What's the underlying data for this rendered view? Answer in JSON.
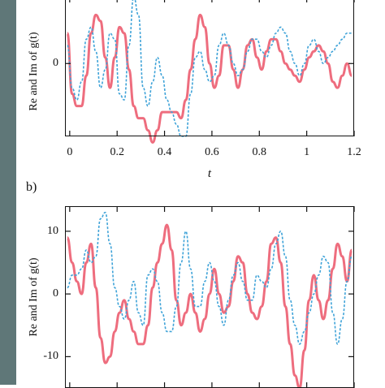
{
  "chart_data": [
    {
      "type": "line",
      "panel": "a",
      "ylabel": "Re and Im of g(t)",
      "xlabel": "t",
      "xlim": [
        -0.02,
        1.2
      ],
      "ylim": [
        -12,
        11
      ],
      "xticks": [
        "0",
        "0.2",
        "0.4",
        "0.6",
        "0.8",
        "1",
        "1.2"
      ],
      "yticks": [
        "0"
      ],
      "series": [
        {
          "color": "#ee6d7e",
          "style": "solid",
          "x": [
            -0.01,
            0.01,
            0.03,
            0.05,
            0.07,
            0.09,
            0.11,
            0.13,
            0.15,
            0.17,
            0.19,
            0.21,
            0.23,
            0.25,
            0.27,
            0.29,
            0.31,
            0.33,
            0.35,
            0.37,
            0.39,
            0.41,
            0.43,
            0.45,
            0.47,
            0.49,
            0.51,
            0.53,
            0.55,
            0.57,
            0.59,
            0.61,
            0.63,
            0.65,
            0.67,
            0.69,
            0.71,
            0.73,
            0.75,
            0.77,
            0.79,
            0.81,
            0.83,
            0.85,
            0.87,
            0.89,
            0.91,
            0.93,
            0.95,
            0.97,
            0.99,
            1.01,
            1.03,
            1.05,
            1.07,
            1.09,
            1.11,
            1.13,
            1.15,
            1.17,
            1.19
          ],
          "y": [
            5,
            -5,
            -7,
            -7,
            -2,
            5,
            8,
            7,
            1,
            -4,
            1,
            6,
            5,
            -1,
            -7,
            -9,
            -9,
            -11,
            -13,
            -11,
            -8,
            -8,
            -8,
            -8,
            -9,
            -6,
            -1,
            4,
            8,
            6,
            0,
            -4,
            -2,
            3,
            3,
            -1,
            -4,
            -1,
            3,
            4,
            1,
            -1,
            2,
            4,
            4,
            2,
            0,
            -1,
            -2,
            -3,
            -1,
            1,
            2,
            3,
            2,
            0,
            -3,
            -4,
            -2,
            0,
            -2
          ]
        },
        {
          "color": "#3fa3d8",
          "style": "dashed",
          "x": [
            -0.01,
            0.01,
            0.03,
            0.05,
            0.07,
            0.09,
            0.11,
            0.13,
            0.15,
            0.17,
            0.19,
            0.21,
            0.23,
            0.25,
            0.27,
            0.29,
            0.31,
            0.33,
            0.35,
            0.37,
            0.39,
            0.41,
            0.43,
            0.45,
            0.47,
            0.49,
            0.51,
            0.53,
            0.55,
            0.57,
            0.59,
            0.61,
            0.63,
            0.65,
            0.67,
            0.69,
            0.71,
            0.73,
            0.75,
            0.77,
            0.79,
            0.81,
            0.83,
            0.85,
            0.87,
            0.89,
            0.91,
            0.93,
            0.95,
            0.97,
            0.99,
            1.01,
            1.03,
            1.05,
            1.07,
            1.09,
            1.11,
            1.13,
            1.15,
            1.17,
            1.19
          ],
          "y": [
            3,
            -4,
            -6,
            -3,
            4,
            6,
            2,
            -4,
            -1,
            5,
            4,
            -5,
            -6,
            3,
            11,
            8,
            -4,
            -7,
            -3,
            1,
            -2,
            -6,
            -8,
            -10,
            -12,
            -12,
            -5,
            1,
            2,
            -1,
            -3,
            -2,
            3,
            5,
            3,
            0,
            -2,
            -1,
            2,
            4,
            4,
            2,
            1,
            3,
            5,
            6,
            5,
            2,
            0,
            -2,
            0,
            3,
            4,
            2,
            0,
            1,
            2,
            3,
            4,
            5,
            5
          ]
        }
      ]
    },
    {
      "type": "line",
      "panel": "b",
      "title": "b)",
      "ylabel": "Re and Im of g(t)",
      "xlim": [
        -0.02,
        1.2
      ],
      "ylim": [
        -15,
        14
      ],
      "yticks": [
        "10",
        "0",
        "-10"
      ],
      "series": [
        {
          "color": "#ee6d7e",
          "style": "solid",
          "x": [
            -0.01,
            0.01,
            0.03,
            0.05,
            0.07,
            0.09,
            0.11,
            0.13,
            0.15,
            0.17,
            0.19,
            0.21,
            0.23,
            0.25,
            0.27,
            0.29,
            0.31,
            0.33,
            0.35,
            0.37,
            0.39,
            0.41,
            0.43,
            0.45,
            0.47,
            0.49,
            0.51,
            0.53,
            0.55,
            0.57,
            0.59,
            0.61,
            0.63,
            0.65,
            0.67,
            0.69,
            0.71,
            0.73,
            0.75,
            0.77,
            0.79,
            0.81,
            0.83,
            0.85,
            0.87,
            0.89,
            0.91,
            0.93,
            0.95,
            0.97,
            0.99,
            1.01,
            1.03,
            1.05,
            1.07,
            1.09,
            1.11,
            1.13,
            1.15,
            1.17,
            1.19
          ],
          "y": [
            9,
            5,
            2,
            0,
            5,
            8,
            1,
            -7,
            -11,
            -10,
            -6,
            -3,
            -1,
            -4,
            -6,
            -8,
            -8,
            -5,
            1,
            5,
            8,
            11,
            7,
            -1,
            -5,
            -3,
            0,
            -3,
            -6,
            -4,
            0,
            4,
            0,
            -3,
            -2,
            2,
            6,
            5,
            0,
            -3,
            -4,
            -2,
            2,
            8,
            9,
            5,
            -2,
            -8,
            -13,
            -15,
            -9,
            -1,
            3,
            -1,
            -4,
            -1,
            4,
            8,
            6,
            2,
            7
          ]
        },
        {
          "color": "#3fa3d8",
          "style": "dashed",
          "x": [
            -0.01,
            0.01,
            0.03,
            0.05,
            0.07,
            0.09,
            0.11,
            0.13,
            0.15,
            0.17,
            0.19,
            0.21,
            0.23,
            0.25,
            0.27,
            0.29,
            0.31,
            0.33,
            0.35,
            0.37,
            0.39,
            0.41,
            0.43,
            0.45,
            0.47,
            0.49,
            0.51,
            0.53,
            0.55,
            0.57,
            0.59,
            0.61,
            0.63,
            0.65,
            0.67,
            0.69,
            0.71,
            0.73,
            0.75,
            0.77,
            0.79,
            0.81,
            0.83,
            0.85,
            0.87,
            0.89,
            0.91,
            0.93,
            0.95,
            0.97,
            0.99,
            1.01,
            1.03,
            1.05,
            1.07,
            1.09,
            1.11,
            1.13,
            1.15,
            1.17,
            1.19
          ],
          "y": [
            1,
            3,
            3,
            4,
            7,
            5,
            6,
            12,
            13,
            8,
            1,
            -2,
            -4,
            -1,
            2,
            -3,
            -5,
            3,
            4,
            2,
            -3,
            -6,
            -6,
            -2,
            5,
            10,
            4,
            -2,
            -2,
            2,
            5,
            2,
            -2,
            -5,
            -1,
            3,
            5,
            2,
            -1,
            -1,
            3,
            2,
            1,
            4,
            8,
            10,
            6,
            -1,
            -5,
            -8,
            -6,
            -3,
            0,
            3,
            6,
            5,
            -3,
            -8,
            -4,
            2,
            6
          ]
        }
      ]
    }
  ]
}
